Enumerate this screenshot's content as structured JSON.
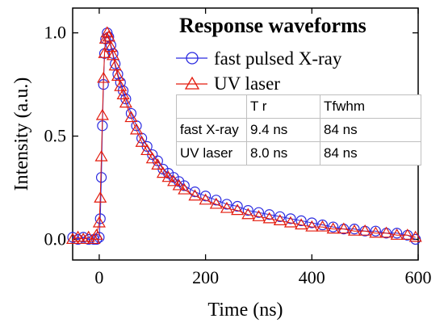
{
  "chart_data": {
    "type": "scatter",
    "title": "Response waveforms",
    "xlabel": "Time (ns)",
    "ylabel": "Intensity (a.u.)",
    "xlim": [
      -50,
      600
    ],
    "ylim": [
      -0.1,
      1.12
    ],
    "xticks": [
      "0",
      "200",
      "400",
      "600"
    ],
    "yticks": [
      "0.0",
      "0.5",
      "1.0"
    ],
    "grid": false,
    "legend_position": "top-right",
    "series": [
      {
        "name": "fast pulsed X-ray",
        "marker": "circle",
        "color": "#2a2ae0",
        "x": [
          -50,
          -40,
          -30,
          -20,
          -10,
          -5,
          0,
          2,
          4,
          6,
          8,
          10,
          12,
          15,
          18,
          22,
          26,
          30,
          35,
          40,
          45,
          50,
          60,
          70,
          80,
          90,
          100,
          110,
          120,
          130,
          140,
          150,
          160,
          180,
          200,
          220,
          240,
          260,
          280,
          300,
          320,
          340,
          360,
          380,
          400,
          420,
          440,
          460,
          480,
          500,
          520,
          540,
          560,
          580,
          595
        ],
        "y": [
          0.01,
          0.0,
          0.01,
          0.0,
          0.0,
          0.0,
          0.01,
          0.1,
          0.3,
          0.55,
          0.75,
          0.9,
          0.97,
          1.0,
          0.98,
          0.94,
          0.9,
          0.85,
          0.8,
          0.76,
          0.72,
          0.68,
          0.61,
          0.55,
          0.49,
          0.45,
          0.41,
          0.38,
          0.34,
          0.32,
          0.3,
          0.28,
          0.26,
          0.23,
          0.21,
          0.19,
          0.17,
          0.16,
          0.14,
          0.13,
          0.12,
          0.11,
          0.1,
          0.09,
          0.08,
          0.07,
          0.06,
          0.05,
          0.05,
          0.04,
          0.04,
          0.03,
          0.03,
          0.02,
          0.0
        ]
      },
      {
        "name": "UV laser",
        "marker": "triangle",
        "color": "#e31a0c",
        "x": [
          -50,
          -40,
          -30,
          -20,
          -10,
          -5,
          0,
          2,
          4,
          6,
          8,
          10,
          12,
          15,
          18,
          22,
          26,
          30,
          35,
          40,
          45,
          50,
          60,
          70,
          80,
          90,
          100,
          110,
          120,
          130,
          140,
          150,
          160,
          180,
          200,
          220,
          240,
          260,
          280,
          300,
          320,
          340,
          360,
          380,
          400,
          420,
          440,
          460,
          480,
          500,
          520,
          540,
          560,
          580,
          595
        ],
        "y": [
          0.0,
          0.01,
          0.0,
          0.01,
          0.0,
          0.02,
          0.08,
          0.2,
          0.4,
          0.6,
          0.78,
          0.9,
          0.97,
          1.0,
          0.98,
          0.93,
          0.89,
          0.84,
          0.79,
          0.74,
          0.7,
          0.66,
          0.59,
          0.53,
          0.47,
          0.43,
          0.39,
          0.36,
          0.32,
          0.3,
          0.28,
          0.26,
          0.24,
          0.21,
          0.19,
          0.17,
          0.15,
          0.14,
          0.12,
          0.11,
          0.1,
          0.09,
          0.08,
          0.07,
          0.06,
          0.06,
          0.05,
          0.05,
          0.04,
          0.04,
          0.03,
          0.03,
          0.02,
          0.02,
          0.01
        ]
      }
    ],
    "table": {
      "header": [
        "",
        "T r",
        "Tfwhm"
      ],
      "rows": [
        [
          "fast X-ray",
          "9.4 ns",
          "84 ns"
        ],
        [
          "UV laser",
          "8.0 ns",
          "84 ns"
        ]
      ]
    }
  }
}
